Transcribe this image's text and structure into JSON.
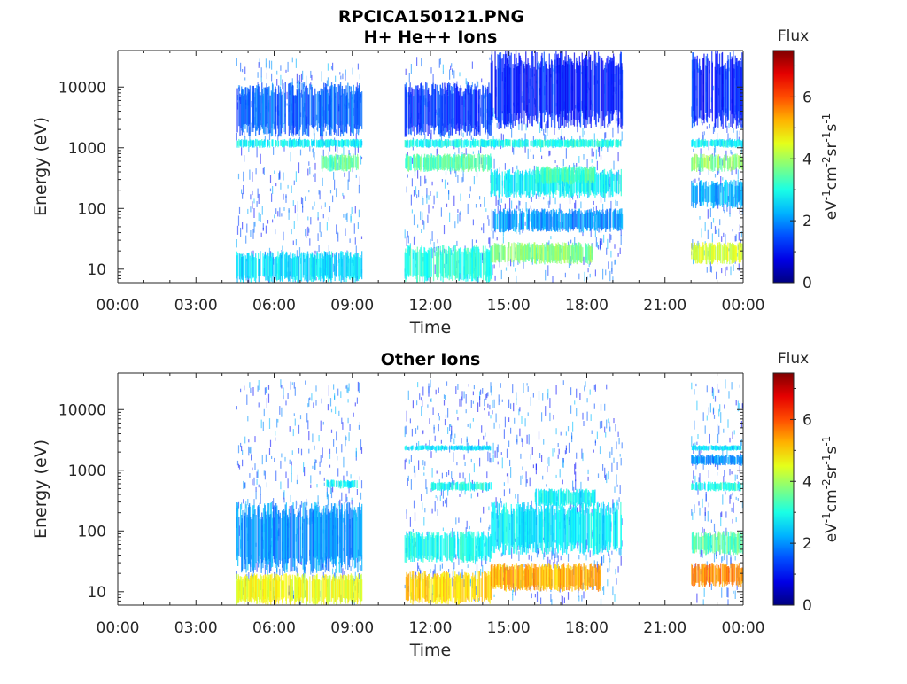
{
  "figure": {
    "title_line1": "RPCICA150121.PNG"
  },
  "chart_data": [
    {
      "type": "heatmap",
      "title": "H+ He++ Ions",
      "xlabel": "Time",
      "ylabel": "Energy (eV)",
      "x_ticks": [
        "00:00",
        "03:00",
        "06:00",
        "09:00",
        "12:00",
        "15:00",
        "18:00",
        "21:00",
        "00:00"
      ],
      "x_range_hours": [
        0,
        24
      ],
      "y_scale": "log",
      "y_ticks": [
        "10",
        "100",
        "1000",
        "10000"
      ],
      "y_range": [
        6,
        40000
      ],
      "colorbar": {
        "title": "Flux",
        "label": "eV-1cm-2sr-1s-1",
        "ticks": [
          "0",
          "2",
          "4",
          "6"
        ],
        "range": [
          0,
          7.5
        ],
        "colormap": "jet"
      },
      "data_intervals_hours": [
        [
          4.55,
          9.35
        ],
        [
          11.0,
          19.35
        ],
        [
          22.0,
          24.0
        ]
      ],
      "bands": [
        {
          "t": [
            4.55,
            9.35
          ],
          "e": [
            1000,
            1400
          ],
          "flux": 2.8
        },
        {
          "t": [
            7.8,
            9.2
          ],
          "e": [
            400,
            800
          ],
          "flux": 3.5
        },
        {
          "t": [
            4.55,
            9.35
          ],
          "e": [
            6,
            20
          ],
          "flux": 2.6
        },
        {
          "t": [
            4.55,
            9.35
          ],
          "e": [
            1500,
            12000
          ],
          "flux": 1.6
        },
        {
          "t": [
            11.0,
            19.35
          ],
          "e": [
            1000,
            1400
          ],
          "flux": 2.9
        },
        {
          "t": [
            11.0,
            14.3
          ],
          "e": [
            400,
            800
          ],
          "flux": 3.4
        },
        {
          "t": [
            14.3,
            19.3
          ],
          "e": [
            150,
            450
          ],
          "flux": 2.8
        },
        {
          "t": [
            16.0,
            18.3
          ],
          "e": [
            250,
            500
          ],
          "flux": 3.3
        },
        {
          "t": [
            11.0,
            14.3
          ],
          "e": [
            6,
            25
          ],
          "flux": 3.1
        },
        {
          "t": [
            14.3,
            18.2
          ],
          "e": [
            12,
            28
          ],
          "flux": 3.8
        },
        {
          "t": [
            11.0,
            14.3
          ],
          "e": [
            1500,
            12000
          ],
          "flux": 1.3
        },
        {
          "t": [
            14.3,
            19.35
          ],
          "e": [
            2000,
            40000
          ],
          "flux": 1.1
        },
        {
          "t": [
            14.3,
            19.35
          ],
          "e": [
            40,
            100
          ],
          "flux": 2.0
        },
        {
          "t": [
            22.0,
            24.0
          ],
          "e": [
            400,
            800
          ],
          "flux": 3.8
        },
        {
          "t": [
            22.0,
            24.0
          ],
          "e": [
            1000,
            1400
          ],
          "flux": 2.8
        },
        {
          "t": [
            22.0,
            24.0
          ],
          "e": [
            12,
            28
          ],
          "flux": 4.4
        },
        {
          "t": [
            22.0,
            24.0
          ],
          "e": [
            100,
            300
          ],
          "flux": 2.2
        },
        {
          "t": [
            22.0,
            24.0
          ],
          "e": [
            2000,
            40000
          ],
          "flux": 1.2
        }
      ]
    },
    {
      "type": "heatmap",
      "title": "Other Ions",
      "xlabel": "Time",
      "ylabel": "Energy (eV)",
      "x_ticks": [
        "00:00",
        "03:00",
        "06:00",
        "09:00",
        "12:00",
        "15:00",
        "18:00",
        "21:00",
        "00:00"
      ],
      "x_range_hours": [
        0,
        24
      ],
      "y_scale": "log",
      "y_ticks": [
        "10",
        "100",
        "1000",
        "10000"
      ],
      "y_range": [
        6,
        40000
      ],
      "colorbar": {
        "title": "Flux",
        "label": "eV-1cm-2sr-1s-1",
        "ticks": [
          "0",
          "2",
          "4",
          "6"
        ],
        "range": [
          0,
          7.5
        ],
        "colormap": "jet"
      },
      "data_intervals_hours": [
        [
          4.55,
          9.35
        ],
        [
          11.0,
          19.35
        ],
        [
          22.0,
          24.0
        ]
      ],
      "bands": [
        {
          "t": [
            4.55,
            9.35
          ],
          "e": [
            6,
            20
          ],
          "flux": 4.6
        },
        {
          "t": [
            4.55,
            9.35
          ],
          "e": [
            20,
            300
          ],
          "flux": 2.0
        },
        {
          "t": [
            8.0,
            9.2
          ],
          "e": [
            500,
            700
          ],
          "flux": 2.8
        },
        {
          "t": [
            11.0,
            14.3
          ],
          "e": [
            6,
            22
          ],
          "flux": 5.0
        },
        {
          "t": [
            14.3,
            18.5
          ],
          "e": [
            10,
            30
          ],
          "flux": 5.3
        },
        {
          "t": [
            11.0,
            14.3
          ],
          "e": [
            30,
            100
          ],
          "flux": 2.9
        },
        {
          "t": [
            14.3,
            19.3
          ],
          "e": [
            40,
            300
          ],
          "flux": 2.7
        },
        {
          "t": [
            16.0,
            18.3
          ],
          "e": [
            250,
            500
          ],
          "flux": 2.8
        },
        {
          "t": [
            12.0,
            14.3
          ],
          "e": [
            450,
            650
          ],
          "flux": 2.9
        },
        {
          "t": [
            11.0,
            14.3
          ],
          "e": [
            2100,
            2600
          ],
          "flux": 2.6
        },
        {
          "t": [
            22.0,
            24.0
          ],
          "e": [
            12,
            30
          ],
          "flux": 5.6
        },
        {
          "t": [
            22.0,
            24.0
          ],
          "e": [
            40,
            100
          ],
          "flux": 3.4
        },
        {
          "t": [
            22.0,
            24.0
          ],
          "e": [
            450,
            650
          ],
          "flux": 3.0
        },
        {
          "t": [
            22.0,
            24.0
          ],
          "e": [
            2100,
            2600
          ],
          "flux": 2.6
        },
        {
          "t": [
            22.0,
            24.0
          ],
          "e": [
            1200,
            1800
          ],
          "flux": 2.0
        }
      ]
    }
  ]
}
